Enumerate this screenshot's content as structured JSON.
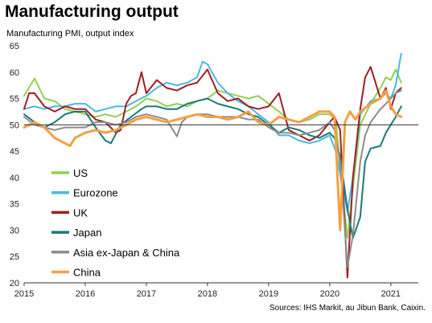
{
  "header": {
    "title": "Manufacturing output",
    "subtitle": "Manufacturing  PMI, output index"
  },
  "footer": {
    "source": "Sources: IHS Markit, au Jibun Bank, Caixin."
  },
  "chart_data": {
    "type": "line",
    "title": "Manufacturing output",
    "ylabel": "Manufacturing  PMI, output index",
    "xlabel": "",
    "xlim": [
      2015.0,
      2021.45
    ],
    "ylim": [
      20,
      65
    ],
    "yticks": [
      20,
      25,
      30,
      35,
      40,
      45,
      50,
      55,
      60,
      65
    ],
    "xticks": [
      "2015",
      "2016",
      "2017",
      "2018",
      "2019",
      "2020",
      "2021"
    ],
    "reference_line": 50,
    "grid": false,
    "legend_position": "bottom-left",
    "series": [
      {
        "name": "US",
        "color": "#92d050",
        "points": [
          [
            2015.0,
            55.5
          ],
          [
            2015.17,
            58.8
          ],
          [
            2015.33,
            55.0
          ],
          [
            2015.5,
            54.5
          ],
          [
            2015.67,
            53.0
          ],
          [
            2015.83,
            52.5
          ],
          [
            2016.0,
            52.0
          ],
          [
            2016.17,
            51.5
          ],
          [
            2016.33,
            52.0
          ],
          [
            2016.5,
            51.5
          ],
          [
            2016.67,
            52.5
          ],
          [
            2016.83,
            53.5
          ],
          [
            2017.0,
            55.0
          ],
          [
            2017.17,
            54.5
          ],
          [
            2017.33,
            53.5
          ],
          [
            2017.5,
            54.0
          ],
          [
            2017.67,
            53.5
          ],
          [
            2017.83,
            54.5
          ],
          [
            2018.0,
            55.0
          ],
          [
            2018.17,
            56.5
          ],
          [
            2018.33,
            56.0
          ],
          [
            2018.5,
            55.5
          ],
          [
            2018.67,
            55.0
          ],
          [
            2018.83,
            55.5
          ],
          [
            2019.0,
            54.0
          ],
          [
            2019.17,
            52.5
          ],
          [
            2019.33,
            51.0
          ],
          [
            2019.5,
            50.5
          ],
          [
            2019.67,
            51.0
          ],
          [
            2019.83,
            52.0
          ],
          [
            2020.0,
            52.0
          ],
          [
            2020.1,
            51.0
          ],
          [
            2020.2,
            38.0
          ],
          [
            2020.29,
            28.5
          ],
          [
            2020.38,
            38.0
          ],
          [
            2020.5,
            50.0
          ],
          [
            2020.67,
            54.0
          ],
          [
            2020.83,
            57.0
          ],
          [
            2020.92,
            59.0
          ],
          [
            2021.0,
            58.5
          ],
          [
            2021.08,
            60.5
          ],
          [
            2021.17,
            58.0
          ]
        ]
      },
      {
        "name": "Eurozone",
        "color": "#4bb7e3",
        "points": [
          [
            2015.0,
            53.0
          ],
          [
            2015.17,
            53.5
          ],
          [
            2015.33,
            53.0
          ],
          [
            2015.5,
            53.5
          ],
          [
            2015.67,
            53.5
          ],
          [
            2015.83,
            54.0
          ],
          [
            2016.0,
            54.0
          ],
          [
            2016.17,
            52.5
          ],
          [
            2016.33,
            53.0
          ],
          [
            2016.5,
            53.5
          ],
          [
            2016.67,
            53.5
          ],
          [
            2016.83,
            54.5
          ],
          [
            2017.0,
            55.5
          ],
          [
            2017.17,
            57.0
          ],
          [
            2017.33,
            58.0
          ],
          [
            2017.5,
            57.5
          ],
          [
            2017.67,
            58.0
          ],
          [
            2017.83,
            59.0
          ],
          [
            2017.92,
            62.0
          ],
          [
            2018.0,
            61.5
          ],
          [
            2018.17,
            58.0
          ],
          [
            2018.33,
            56.0
          ],
          [
            2018.5,
            54.5
          ],
          [
            2018.67,
            53.5
          ],
          [
            2018.83,
            52.0
          ],
          [
            2019.0,
            50.5
          ],
          [
            2019.17,
            48.0
          ],
          [
            2019.33,
            48.0
          ],
          [
            2019.5,
            47.0
          ],
          [
            2019.67,
            46.5
          ],
          [
            2019.83,
            47.0
          ],
          [
            2020.0,
            48.0
          ],
          [
            2020.1,
            45.0
          ],
          [
            2020.2,
            39.0
          ],
          [
            2020.29,
            33.5
          ],
          [
            2020.38,
            40.0
          ],
          [
            2020.5,
            52.0
          ],
          [
            2020.67,
            54.5
          ],
          [
            2020.83,
            55.0
          ],
          [
            2020.92,
            56.0
          ],
          [
            2021.0,
            55.0
          ],
          [
            2021.08,
            57.5
          ],
          [
            2021.17,
            63.5
          ]
        ]
      },
      {
        "name": "UK",
        "color": "#a01e21",
        "points": [
          [
            2015.0,
            53.0
          ],
          [
            2015.08,
            56.0
          ],
          [
            2015.17,
            56.0
          ],
          [
            2015.33,
            53.5
          ],
          [
            2015.5,
            52.5
          ],
          [
            2015.67,
            53.5
          ],
          [
            2015.83,
            53.0
          ],
          [
            2016.0,
            53.0
          ],
          [
            2016.17,
            51.0
          ],
          [
            2016.33,
            50.5
          ],
          [
            2016.5,
            48.5
          ],
          [
            2016.58,
            49.0
          ],
          [
            2016.67,
            54.0
          ],
          [
            2016.75,
            55.5
          ],
          [
            2016.83,
            56.0
          ],
          [
            2016.92,
            60.0
          ],
          [
            2017.0,
            56.0
          ],
          [
            2017.17,
            58.5
          ],
          [
            2017.33,
            57.0
          ],
          [
            2017.5,
            56.5
          ],
          [
            2017.67,
            57.5
          ],
          [
            2017.83,
            58.0
          ],
          [
            2018.0,
            60.5
          ],
          [
            2018.17,
            56.0
          ],
          [
            2018.33,
            54.5
          ],
          [
            2018.5,
            55.0
          ],
          [
            2018.67,
            53.5
          ],
          [
            2018.83,
            53.0
          ],
          [
            2019.0,
            53.5
          ],
          [
            2019.17,
            56.0
          ],
          [
            2019.33,
            49.0
          ],
          [
            2019.5,
            48.0
          ],
          [
            2019.67,
            47.0
          ],
          [
            2019.83,
            48.0
          ],
          [
            2020.0,
            50.5
          ],
          [
            2020.08,
            51.5
          ],
          [
            2020.17,
            49.0
          ],
          [
            2020.29,
            21.0
          ],
          [
            2020.38,
            40.0
          ],
          [
            2020.5,
            53.0
          ],
          [
            2020.58,
            59.0
          ],
          [
            2020.67,
            61.0
          ],
          [
            2020.75,
            58.0
          ],
          [
            2020.83,
            55.0
          ],
          [
            2020.92,
            57.0
          ],
          [
            2021.0,
            53.0
          ],
          [
            2021.08,
            56.0
          ],
          [
            2021.17,
            57.0
          ]
        ]
      },
      {
        "name": "Japan",
        "color": "#1a7a78",
        "points": [
          [
            2015.0,
            52.0
          ],
          [
            2015.17,
            50.5
          ],
          [
            2015.33,
            49.5
          ],
          [
            2015.5,
            50.5
          ],
          [
            2015.67,
            52.0
          ],
          [
            2015.83,
            52.5
          ],
          [
            2016.0,
            52.5
          ],
          [
            2016.17,
            49.5
          ],
          [
            2016.33,
            47.0
          ],
          [
            2016.42,
            46.5
          ],
          [
            2016.58,
            50.0
          ],
          [
            2016.75,
            51.5
          ],
          [
            2016.92,
            53.0
          ],
          [
            2017.0,
            53.5
          ],
          [
            2017.17,
            53.5
          ],
          [
            2017.33,
            53.0
          ],
          [
            2017.5,
            53.0
          ],
          [
            2017.67,
            54.0
          ],
          [
            2017.83,
            54.5
          ],
          [
            2018.0,
            55.0
          ],
          [
            2018.17,
            54.0
          ],
          [
            2018.33,
            53.5
          ],
          [
            2018.5,
            53.0
          ],
          [
            2018.67,
            52.0
          ],
          [
            2018.83,
            51.5
          ],
          [
            2019.0,
            50.0
          ],
          [
            2019.17,
            48.5
          ],
          [
            2019.33,
            49.5
          ],
          [
            2019.5,
            49.0
          ],
          [
            2019.67,
            48.0
          ],
          [
            2019.83,
            47.5
          ],
          [
            2020.0,
            48.5
          ],
          [
            2020.08,
            47.5
          ],
          [
            2020.17,
            44.0
          ],
          [
            2020.29,
            34.0
          ],
          [
            2020.38,
            28.5
          ],
          [
            2020.5,
            32.5
          ],
          [
            2020.58,
            43.0
          ],
          [
            2020.67,
            45.5
          ],
          [
            2020.83,
            46.0
          ],
          [
            2020.92,
            48.5
          ],
          [
            2021.0,
            50.0
          ],
          [
            2021.08,
            51.5
          ],
          [
            2021.17,
            53.5
          ]
        ]
      },
      {
        "name": "Asia ex-Japan & China",
        "color": "#8c8c8c",
        "points": [
          [
            2015.0,
            51.5
          ],
          [
            2015.17,
            50.0
          ],
          [
            2015.33,
            49.5
          ],
          [
            2015.5,
            49.0
          ],
          [
            2015.67,
            49.5
          ],
          [
            2015.83,
            49.5
          ],
          [
            2016.0,
            49.5
          ],
          [
            2016.17,
            50.5
          ],
          [
            2016.33,
            50.5
          ],
          [
            2016.5,
            50.0
          ],
          [
            2016.67,
            50.5
          ],
          [
            2016.83,
            51.5
          ],
          [
            2017.0,
            52.0
          ],
          [
            2017.17,
            51.5
          ],
          [
            2017.33,
            51.0
          ],
          [
            2017.5,
            47.8
          ],
          [
            2017.58,
            50.5
          ],
          [
            2017.67,
            51.5
          ],
          [
            2017.83,
            52.0
          ],
          [
            2018.0,
            52.0
          ],
          [
            2018.17,
            51.5
          ],
          [
            2018.33,
            51.5
          ],
          [
            2018.5,
            51.5
          ],
          [
            2018.67,
            51.0
          ],
          [
            2018.83,
            51.0
          ],
          [
            2019.0,
            49.5
          ],
          [
            2019.17,
            48.5
          ],
          [
            2019.33,
            48.5
          ],
          [
            2019.5,
            48.0
          ],
          [
            2019.67,
            48.5
          ],
          [
            2019.83,
            49.0
          ],
          [
            2020.0,
            50.5
          ],
          [
            2020.08,
            49.0
          ],
          [
            2020.17,
            43.0
          ],
          [
            2020.29,
            23.0
          ],
          [
            2020.38,
            29.0
          ],
          [
            2020.5,
            43.0
          ],
          [
            2020.58,
            48.0
          ],
          [
            2020.67,
            50.5
          ],
          [
            2020.83,
            53.0
          ],
          [
            2020.92,
            54.0
          ],
          [
            2021.0,
            55.0
          ],
          [
            2021.08,
            56.0
          ],
          [
            2021.17,
            56.5
          ]
        ]
      },
      {
        "name": "China",
        "color": "#f5a040",
        "points": [
          [
            2015.0,
            49.5
          ],
          [
            2015.17,
            50.5
          ],
          [
            2015.33,
            49.5
          ],
          [
            2015.5,
            47.5
          ],
          [
            2015.67,
            46.5
          ],
          [
            2015.75,
            46.0
          ],
          [
            2015.83,
            47.5
          ],
          [
            2016.0,
            48.5
          ],
          [
            2016.17,
            49.0
          ],
          [
            2016.33,
            48.5
          ],
          [
            2016.5,
            49.0
          ],
          [
            2016.67,
            50.0
          ],
          [
            2016.83,
            51.0
          ],
          [
            2017.0,
            51.5
          ],
          [
            2017.17,
            51.0
          ],
          [
            2017.33,
            50.5
          ],
          [
            2017.5,
            51.0
          ],
          [
            2017.67,
            51.5
          ],
          [
            2017.83,
            52.0
          ],
          [
            2018.0,
            51.5
          ],
          [
            2018.17,
            51.5
          ],
          [
            2018.33,
            51.0
          ],
          [
            2018.5,
            51.5
          ],
          [
            2018.67,
            52.5
          ],
          [
            2018.83,
            50.5
          ],
          [
            2019.0,
            50.0
          ],
          [
            2019.17,
            51.5
          ],
          [
            2019.33,
            51.0
          ],
          [
            2019.5,
            50.5
          ],
          [
            2019.67,
            51.5
          ],
          [
            2019.83,
            52.5
          ],
          [
            2020.0,
            52.5
          ],
          [
            2020.08,
            51.5
          ],
          [
            2020.17,
            30.0
          ],
          [
            2020.25,
            50.5
          ],
          [
            2020.33,
            52.5
          ],
          [
            2020.42,
            51.0
          ],
          [
            2020.5,
            52.5
          ],
          [
            2020.67,
            54.0
          ],
          [
            2020.83,
            55.0
          ],
          [
            2020.92,
            56.5
          ],
          [
            2021.0,
            53.5
          ],
          [
            2021.08,
            52.0
          ],
          [
            2021.17,
            51.5
          ]
        ]
      }
    ]
  }
}
